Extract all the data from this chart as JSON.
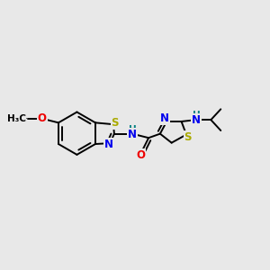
{
  "bg_color": "#e8e8e8",
  "bond_color": "#000000",
  "bond_width": 1.4,
  "atom_colors": {
    "S": "#aaaa00",
    "N": "#0000ee",
    "O": "#ee0000",
    "C": "#000000",
    "H": "#008080"
  },
  "font_size": 8.5,
  "fig_size": [
    3.0,
    3.0
  ],
  "dpi": 100
}
